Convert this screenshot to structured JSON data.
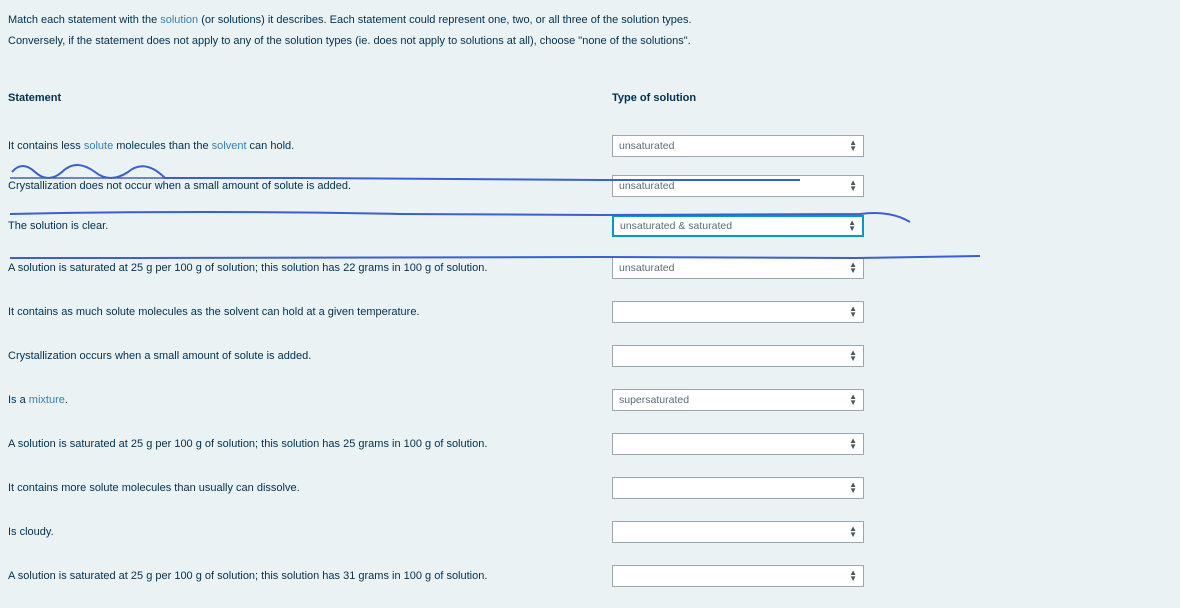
{
  "instructions": {
    "line1_a": "Match each statement with the ",
    "line1_link": "solution",
    "line1_b": " (or solutions) it describes.  Each statement could represent one, two, or all three of the solution types.",
    "line2": "Conversely, if the statement does not apply to any of the solution types (ie. does not apply to solutions at all), choose \"none of the solutions\"."
  },
  "headers": {
    "statement": "Statement",
    "type": "Type of solution"
  },
  "rows": [
    {
      "pre": "It contains less ",
      "link1": "solute",
      "mid": " molecules than the ",
      "link2": "solvent",
      "post": " can hold.",
      "value": "unsaturated",
      "highlight": false
    },
    {
      "text": "Crystallization does not occur when a small amount of solute is added.",
      "value": "unsaturated",
      "highlight": false
    },
    {
      "text": "The solution is clear.",
      "value": "unsaturated & saturated",
      "highlight": true
    },
    {
      "text": "A solution is saturated at 25 g per 100 g of solution; this solution has 22 grams in 100 g of solution.",
      "value": "unsaturated",
      "highlight": false
    },
    {
      "text": "It contains as much solute molecules as the solvent can hold at a given temperature.",
      "value": "",
      "highlight": false
    },
    {
      "text": "Crystallization occurs when a small amount of solute is added.",
      "value": "",
      "highlight": false
    },
    {
      "pre": "Is a ",
      "link1": "mixture",
      "post": ".",
      "value": "supersaturated",
      "highlight": false
    },
    {
      "text": "A solution is saturated at 25 g per 100 g of solution; this solution has 25 grams in 100 g of solution.",
      "value": "",
      "highlight": false
    },
    {
      "text": "It contains more solute molecules than usually can dissolve.",
      "value": "",
      "highlight": false
    },
    {
      "text": "Is cloudy.",
      "value": "",
      "highlight": false
    },
    {
      "text": "A solution is saturated at 25 g per 100 g of solution; this solution has 31 grams in 100 g of solution.",
      "value": "",
      "highlight": false
    }
  ],
  "annotation_color": "#3a5fcf"
}
